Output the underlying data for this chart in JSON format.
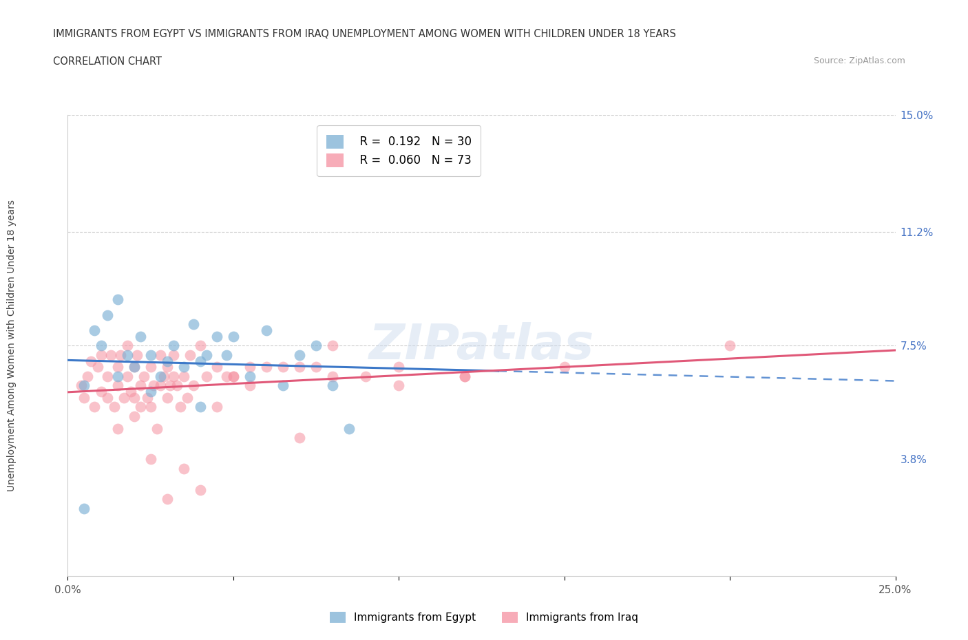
{
  "title_line1": "IMMIGRANTS FROM EGYPT VS IMMIGRANTS FROM IRAQ UNEMPLOYMENT AMONG WOMEN WITH CHILDREN UNDER 18 YEARS",
  "title_line2": "CORRELATION CHART",
  "source_text": "Source: ZipAtlas.com",
  "ylabel": "Unemployment Among Women with Children Under 18 years",
  "xmin": 0.0,
  "xmax": 0.25,
  "ymin": 0.0,
  "ymax": 0.15,
  "color_egypt": "#7bafd4",
  "color_iraq": "#f590a0",
  "color_egypt_line": "#3c78c8",
  "color_iraq_line": "#e05878",
  "legend_R_egypt": "0.192",
  "legend_N_egypt": "30",
  "legend_R_iraq": "0.060",
  "legend_N_iraq": "73",
  "watermark": "ZIPatlas",
  "egypt_x": [
    0.005,
    0.008,
    0.01,
    0.012,
    0.015,
    0.015,
    0.018,
    0.02,
    0.022,
    0.025,
    0.025,
    0.028,
    0.03,
    0.032,
    0.035,
    0.038,
    0.04,
    0.04,
    0.042,
    0.045,
    0.048,
    0.05,
    0.055,
    0.06,
    0.065,
    0.07,
    0.075,
    0.08,
    0.085,
    0.005
  ],
  "egypt_y": [
    0.062,
    0.08,
    0.075,
    0.085,
    0.065,
    0.09,
    0.072,
    0.068,
    0.078,
    0.06,
    0.072,
    0.065,
    0.07,
    0.075,
    0.068,
    0.082,
    0.07,
    0.055,
    0.072,
    0.078,
    0.072,
    0.078,
    0.065,
    0.08,
    0.062,
    0.072,
    0.075,
    0.062,
    0.048,
    0.022
  ],
  "iraq_x": [
    0.004,
    0.005,
    0.006,
    0.007,
    0.008,
    0.009,
    0.01,
    0.01,
    0.012,
    0.012,
    0.013,
    0.014,
    0.015,
    0.015,
    0.015,
    0.016,
    0.017,
    0.018,
    0.018,
    0.019,
    0.02,
    0.02,
    0.02,
    0.021,
    0.022,
    0.022,
    0.023,
    0.024,
    0.025,
    0.025,
    0.026,
    0.027,
    0.028,
    0.028,
    0.029,
    0.03,
    0.03,
    0.031,
    0.032,
    0.032,
    0.033,
    0.034,
    0.035,
    0.036,
    0.037,
    0.038,
    0.04,
    0.042,
    0.045,
    0.048,
    0.05,
    0.055,
    0.06,
    0.065,
    0.07,
    0.075,
    0.08,
    0.09,
    0.1,
    0.12,
    0.045,
    0.05,
    0.055,
    0.08,
    0.1,
    0.12,
    0.035,
    0.04,
    0.025,
    0.03,
    0.07,
    0.15,
    0.2
  ],
  "iraq_y": [
    0.062,
    0.058,
    0.065,
    0.07,
    0.055,
    0.068,
    0.072,
    0.06,
    0.065,
    0.058,
    0.072,
    0.055,
    0.068,
    0.062,
    0.048,
    0.072,
    0.058,
    0.065,
    0.075,
    0.06,
    0.068,
    0.058,
    0.052,
    0.072,
    0.062,
    0.055,
    0.065,
    0.058,
    0.068,
    0.055,
    0.062,
    0.048,
    0.072,
    0.062,
    0.065,
    0.068,
    0.058,
    0.062,
    0.065,
    0.072,
    0.062,
    0.055,
    0.065,
    0.058,
    0.072,
    0.062,
    0.075,
    0.065,
    0.068,
    0.065,
    0.065,
    0.068,
    0.068,
    0.068,
    0.068,
    0.068,
    0.075,
    0.065,
    0.068,
    0.065,
    0.055,
    0.065,
    0.062,
    0.065,
    0.062,
    0.065,
    0.035,
    0.028,
    0.038,
    0.025,
    0.045,
    0.068,
    0.075
  ]
}
